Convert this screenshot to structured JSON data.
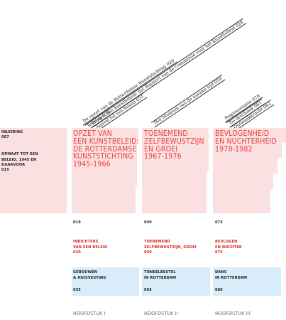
{
  "intro": {
    "inleiding": "INLEIDING",
    "inleiding_page": "007",
    "opmaat": "OPMAAT TOT EEN\nBELEID, 1945 EN\nDAARVOOR",
    "opmaat_page": "015"
  },
  "chapters": [
    {
      "title": "OPZET VAN\nEEN KUNSTBELEID:\nDE ROTTERDAMSE\nKUNSTSTICHTING\n1945-1966",
      "page": "019",
      "red_label": "INRICHTERS\nVAN EEN BELEID",
      "red_page": "020",
      "blue_label": "GEBOUWEN\n& HUISVESTING",
      "blue_page": "035",
      "footer": "HOOFDSTUK I",
      "diagonals": [
        "De opzet van de Rotterdamse Kunststichting 020",
        "Sturing 026",
        "Protest van kunstbeleid: het Rapport van de Commissie voor het Kunstbeleid 028",
        "Aanval tot een beleid 031"
      ]
    },
    {
      "title": "TOENEMEND\nZELFBEWUSTZIJN\nEN GROEI\n1967-1976",
      "page": "049",
      "red_label": "TOENEMEND\nZELFBEWUSTZIJN, GROEI",
      "red_page": "050",
      "blue_label": "TONEELBESTEL\nIN ROTTERDAM",
      "blue_page": "065",
      "footer": "HOOFDSTUK II",
      "diagonals": [
        "Het Museum van de nieuwe tijd 059"
      ]
    },
    {
      "title": "BEVLOGENHEID\nEN NUCHTERHEID\n1978-1982",
      "page": "073",
      "red_label": "BEVLOGEN\nEN NUCHTER",
      "red_page": "074",
      "blue_label": "DANS\nIN ROTTERDAM",
      "blue_page": "089",
      "footer": "HOOFDSTUK III",
      "diagonals": [
        "Regiescenario 079",
        "De drechook 081",
        "Ontwaakkracht 082"
      ]
    }
  ]
}
